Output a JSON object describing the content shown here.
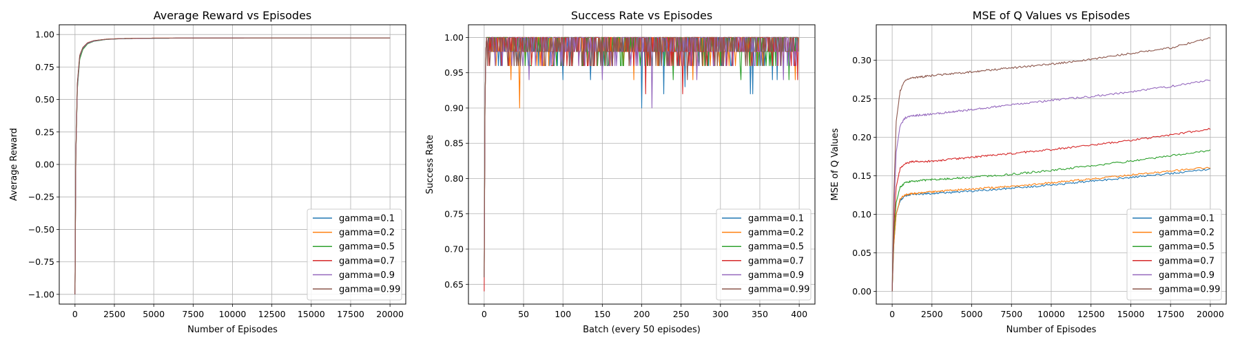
{
  "figure": {
    "background": "#ffffff"
  },
  "colors": [
    "#1f77b4",
    "#ff7f0e",
    "#2ca02c",
    "#d62728",
    "#9467bd",
    "#8c564b"
  ],
  "chart_data": [
    {
      "type": "line",
      "title": "Average Reward vs Episodes",
      "xlabel": "Number of Episodes",
      "ylabel": "Average Reward",
      "xlim": [
        -1000,
        21000
      ],
      "ylim": [
        -1.075,
        1.075
      ],
      "xticks": [
        0,
        2500,
        5000,
        7500,
        10000,
        12500,
        15000,
        17500,
        20000
      ],
      "xtick_labels": [
        "0",
        "2500",
        "5000",
        "7500",
        "10000",
        "12500",
        "15000",
        "17500",
        "20000"
      ],
      "yticks": [
        -1.0,
        -0.75,
        -0.5,
        -0.25,
        0.0,
        0.25,
        0.5,
        0.75,
        1.0
      ],
      "ytick_labels": [
        "−1.00",
        "−0.75",
        "−0.50",
        "−0.25",
        "0.00",
        "0.25",
        "0.50",
        "0.75",
        "1.00"
      ],
      "grid": true,
      "legend": "lower right",
      "series": [
        {
          "name": "gamma=0.1",
          "x": [
            0,
            50,
            150,
            300,
            500,
            800,
            1200,
            2000,
            3000,
            5000,
            8000,
            12000,
            16000,
            20000
          ],
          "y": [
            -1.0,
            0.05,
            0.6,
            0.82,
            0.89,
            0.93,
            0.95,
            0.963,
            0.968,
            0.971,
            0.973,
            0.974,
            0.974,
            0.974
          ]
        },
        {
          "name": "gamma=0.2",
          "x": [
            0,
            50,
            150,
            300,
            500,
            800,
            1200,
            2000,
            3000,
            5000,
            8000,
            12000,
            16000,
            20000
          ],
          "y": [
            -1.0,
            0.05,
            0.6,
            0.83,
            0.9,
            0.935,
            0.952,
            0.964,
            0.969,
            0.972,
            0.973,
            0.974,
            0.974,
            0.974
          ]
        },
        {
          "name": "gamma=0.5",
          "x": [
            0,
            50,
            150,
            300,
            500,
            800,
            1200,
            2000,
            3000,
            5000,
            8000,
            12000,
            16000,
            20000
          ],
          "y": [
            -1.0,
            0.05,
            0.58,
            0.81,
            0.885,
            0.928,
            0.948,
            0.962,
            0.968,
            0.971,
            0.973,
            0.974,
            0.974,
            0.974
          ]
        },
        {
          "name": "gamma=0.7",
          "x": [
            0,
            50,
            150,
            300,
            500,
            800,
            1200,
            2000,
            3000,
            5000,
            8000,
            12000,
            16000,
            20000
          ],
          "y": [
            -1.0,
            0.06,
            0.62,
            0.84,
            0.9,
            0.937,
            0.953,
            0.964,
            0.969,
            0.972,
            0.973,
            0.974,
            0.974,
            0.974
          ]
        },
        {
          "name": "gamma=0.9",
          "x": [
            0,
            50,
            150,
            300,
            500,
            800,
            1200,
            2000,
            3000,
            5000,
            8000,
            12000,
            16000,
            20000
          ],
          "y": [
            -1.0,
            0.05,
            0.6,
            0.83,
            0.895,
            0.932,
            0.95,
            0.963,
            0.968,
            0.971,
            0.973,
            0.974,
            0.974,
            0.974
          ]
        },
        {
          "name": "gamma=0.99",
          "x": [
            0,
            50,
            150,
            300,
            500,
            800,
            1200,
            2000,
            3000,
            5000,
            8000,
            12000,
            16000,
            20000
          ],
          "y": [
            -1.0,
            0.07,
            0.63,
            0.84,
            0.9,
            0.936,
            0.953,
            0.964,
            0.969,
            0.972,
            0.973,
            0.974,
            0.974,
            0.974
          ]
        }
      ]
    },
    {
      "type": "line",
      "title": "Success Rate vs Episodes",
      "xlabel": "Batch (every 50 episodes)",
      "ylabel": "Success Rate",
      "xlim": [
        -20,
        420
      ],
      "ylim": [
        0.622,
        1.018
      ],
      "xticks": [
        0,
        50,
        100,
        150,
        200,
        250,
        300,
        350,
        400
      ],
      "xtick_labels": [
        "0",
        "50",
        "100",
        "150",
        "200",
        "250",
        "300",
        "350",
        "400"
      ],
      "yticks": [
        0.65,
        0.7,
        0.75,
        0.8,
        0.85,
        0.9,
        0.95,
        1.0
      ],
      "ytick_labels": [
        "0.65",
        "0.70",
        "0.75",
        "0.80",
        "0.85",
        "0.90",
        "0.95",
        "1.00"
      ],
      "grid": true,
      "legend": "lower right",
      "dips": [
        [
          [
            100,
            0.94
          ],
          [
            135,
            0.94
          ],
          [
            200,
            0.9
          ],
          [
            228,
            0.92
          ],
          [
            255,
            0.93
          ],
          [
            338,
            0.92
          ],
          [
            341,
            0.92
          ],
          [
            366,
            0.94
          ],
          [
            372,
            0.94
          ]
        ],
        [
          [
            34,
            0.94
          ],
          [
            45,
            0.9
          ],
          [
            190,
            0.94
          ],
          [
            265,
            0.94
          ],
          [
            395,
            0.94
          ]
        ],
        [
          [
            88,
            0.96
          ],
          [
            140,
            0.96
          ],
          [
            240,
            0.94
          ],
          [
            300,
            0.96
          ],
          [
            326,
            0.94
          ],
          [
            387,
            0.94
          ]
        ],
        [
          [
            120,
            0.96
          ],
          [
            205,
            0.92
          ],
          [
            252,
            0.92
          ],
          [
            315,
            0.96
          ],
          [
            398,
            0.94
          ]
        ],
        [
          [
            57,
            0.94
          ],
          [
            97,
            0.96
          ],
          [
            150,
            0.94
          ],
          [
            213,
            0.9
          ],
          [
            270,
            0.94
          ],
          [
            380,
            0.94
          ]
        ],
        [
          [
            30,
            0.96
          ],
          [
            108,
            0.96
          ],
          [
            232,
            0.96
          ],
          [
            258,
            0.94
          ],
          [
            355,
            0.96
          ]
        ]
      ],
      "series": [
        {
          "name": "gamma=0.1",
          "x": [
            0,
            1,
            2,
            3
          ],
          "y": [
            0.66,
            0.9,
            0.98,
            1.0
          ]
        },
        {
          "name": "gamma=0.2",
          "x": [
            0,
            1,
            2,
            3
          ],
          "y": [
            0.66,
            0.9,
            0.98,
            1.0
          ]
        },
        {
          "name": "gamma=0.5",
          "x": [
            0,
            1,
            2,
            3
          ],
          "y": [
            0.66,
            0.9,
            0.98,
            1.0
          ]
        },
        {
          "name": "gamma=0.7",
          "x": [
            0,
            1,
            2,
            3
          ],
          "y": [
            0.64,
            0.9,
            0.98,
            1.0
          ]
        },
        {
          "name": "gamma=0.9",
          "x": [
            0,
            1,
            2,
            3
          ],
          "y": [
            0.66,
            0.9,
            0.98,
            1.0
          ]
        },
        {
          "name": "gamma=0.99",
          "x": [
            0,
            1,
            2,
            3
          ],
          "y": [
            0.66,
            0.9,
            0.98,
            1.0
          ]
        }
      ]
    },
    {
      "type": "line",
      "title": "MSE of Q Values vs Episodes",
      "xlabel": "Number of Episodes",
      "ylabel": "MSE of Q Values",
      "xlim": [
        -1000,
        21000
      ],
      "ylim": [
        -0.0165,
        0.346
      ],
      "xticks": [
        0,
        2500,
        5000,
        7500,
        10000,
        12500,
        15000,
        17500,
        20000
      ],
      "xtick_labels": [
        "0",
        "2500",
        "5000",
        "7500",
        "10000",
        "12500",
        "15000",
        "17500",
        "20000"
      ],
      "yticks": [
        0.0,
        0.05,
        0.1,
        0.15,
        0.2,
        0.25,
        0.3
      ],
      "ytick_labels": [
        "0.00",
        "0.05",
        "0.10",
        "0.15",
        "0.20",
        "0.25",
        "0.30"
      ],
      "grid": true,
      "legend": "lower right",
      "series": [
        {
          "name": "gamma=0.1",
          "x": [
            0,
            100,
            250,
            500,
            800,
            1200,
            2500,
            5000,
            7500,
            10000,
            12500,
            15000,
            17500,
            20000
          ],
          "y": [
            0.0,
            0.06,
            0.1,
            0.118,
            0.124,
            0.126,
            0.127,
            0.13,
            0.134,
            0.138,
            0.143,
            0.148,
            0.153,
            0.159
          ]
        },
        {
          "name": "gamma=0.2",
          "x": [
            0,
            100,
            250,
            500,
            800,
            1200,
            2500,
            5000,
            7500,
            10000,
            12500,
            15000,
            17500,
            20000
          ],
          "y": [
            0.0,
            0.06,
            0.1,
            0.12,
            0.125,
            0.127,
            0.129,
            0.133,
            0.136,
            0.141,
            0.146,
            0.151,
            0.156,
            0.161
          ]
        },
        {
          "name": "gamma=0.5",
          "x": [
            0,
            100,
            250,
            500,
            800,
            1200,
            2500,
            5000,
            7500,
            10000,
            12500,
            15000,
            17500,
            20000
          ],
          "y": [
            0.0,
            0.07,
            0.115,
            0.135,
            0.141,
            0.143,
            0.145,
            0.148,
            0.152,
            0.157,
            0.163,
            0.169,
            0.176,
            0.183
          ]
        },
        {
          "name": "gamma=0.7",
          "x": [
            0,
            100,
            250,
            500,
            800,
            1200,
            2500,
            5000,
            7500,
            10000,
            12500,
            15000,
            17500,
            20000
          ],
          "y": [
            0.0,
            0.08,
            0.135,
            0.16,
            0.166,
            0.168,
            0.169,
            0.174,
            0.179,
            0.184,
            0.19,
            0.196,
            0.203,
            0.211
          ]
        },
        {
          "name": "gamma=0.9",
          "x": [
            0,
            100,
            250,
            500,
            800,
            1200,
            2500,
            5000,
            7500,
            10000,
            12500,
            15000,
            17500,
            20000
          ],
          "y": [
            0.0,
            0.1,
            0.18,
            0.215,
            0.225,
            0.228,
            0.23,
            0.236,
            0.242,
            0.248,
            0.253,
            0.259,
            0.266,
            0.274
          ]
        },
        {
          "name": "gamma=0.99",
          "x": [
            0,
            100,
            250,
            500,
            800,
            1200,
            2500,
            5000,
            7500,
            10000,
            12500,
            15000,
            17500,
            20000
          ],
          "y": [
            0.0,
            0.12,
            0.22,
            0.26,
            0.274,
            0.277,
            0.28,
            0.285,
            0.29,
            0.295,
            0.301,
            0.309,
            0.316,
            0.329
          ]
        }
      ]
    }
  ]
}
